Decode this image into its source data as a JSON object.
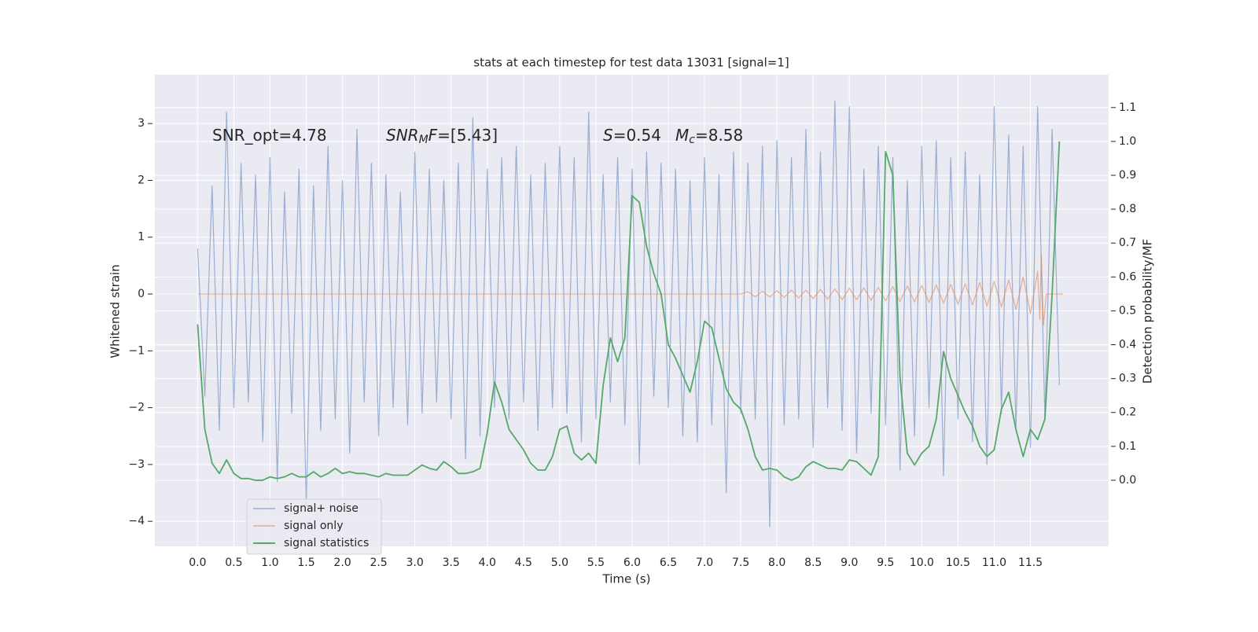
{
  "chart_data": {
    "type": "line",
    "title": "stats at each timestep for test data 13031 [signal=1]",
    "xlabel": "Time (s)",
    "ylabel": "Whitened strain",
    "y2label": "Detection probability/MF",
    "annotations": [
      [
        {
          "t": "SNR_opt=4.78"
        }
      ],
      [
        {
          "t": "SNR",
          "italic": true
        },
        {
          "t": "M",
          "italic": true,
          "sub": true
        },
        {
          "t": "F",
          "italic": true
        },
        {
          "t": "=[5.43]"
        }
      ],
      [
        {
          "t": "S",
          "italic": true
        },
        {
          "t": "=0.54"
        }
      ],
      [
        {
          "t": "M",
          "italic": true
        },
        {
          "t": "c",
          "italic": true,
          "sub": true
        },
        {
          "t": "=8.58"
        }
      ]
    ],
    "x": [
      0,
      0.1,
      0.2,
      0.3,
      0.4,
      0.5,
      0.6,
      0.7,
      0.8,
      0.9,
      1,
      1.1,
      1.2,
      1.3,
      1.4,
      1.5,
      1.6,
      1.7,
      1.8,
      1.9,
      2,
      2.1,
      2.2,
      2.3,
      2.4,
      2.5,
      2.6,
      2.7,
      2.8,
      2.9,
      3,
      3.1,
      3.2,
      3.3,
      3.4,
      3.5,
      3.6,
      3.7,
      3.8,
      3.9,
      4,
      4.1,
      4.2,
      4.3,
      4.4,
      4.5,
      4.6,
      4.7,
      4.8,
      4.9,
      5,
      5.1,
      5.2,
      5.3,
      5.4,
      5.5,
      5.6,
      5.7,
      5.8,
      5.9,
      6,
      6.1,
      6.2,
      6.3,
      6.4,
      6.5,
      6.6,
      6.7,
      6.8,
      6.9,
      7,
      7.1,
      7.2,
      7.3,
      7.4,
      7.5,
      7.6,
      7.7,
      7.8,
      7.9,
      8,
      8.1,
      8.2,
      8.3,
      8.4,
      8.5,
      8.6,
      8.7,
      8.8,
      8.9,
      9,
      9.1,
      9.2,
      9.3,
      9.4,
      9.5,
      9.6,
      9.7,
      9.8,
      9.9,
      10,
      10.1,
      10.2,
      10.3,
      10.4,
      10.5,
      10.6,
      10.7,
      10.8,
      10.9,
      11,
      11.1,
      11.2,
      11.3,
      11.4,
      11.5,
      11.6,
      11.7,
      11.8,
      11.9
    ],
    "series": [
      {
        "name": "signal+ noise",
        "color": "#4c72b0",
        "values": [
          0.8,
          -1.8,
          1.9,
          -2.4,
          3.2,
          -2.0,
          2.3,
          -1.9,
          2.1,
          -2.6,
          2.4,
          -3.3,
          1.8,
          -2.1,
          2.2,
          -3.7,
          1.9,
          -2.4,
          2.6,
          -2.2,
          2.0,
          -2.8,
          2.9,
          -1.9,
          2.3,
          -2.5,
          2.1,
          -2.0,
          1.8,
          -2.3,
          2.5,
          -2.1,
          2.2,
          -1.9,
          2.0,
          -2.2,
          2.3,
          -2.9,
          3.1,
          -2.5,
          2.2,
          -2.0,
          2.4,
          -2.2,
          2.6,
          -1.9,
          2.1,
          -2.4,
          2.3,
          -2.0,
          2.6,
          -2.1,
          2.4,
          -2.6,
          3.2,
          -2.2,
          2.1,
          -1.9,
          2.4,
          -2.3,
          2.2,
          -3.0,
          2.5,
          -1.8,
          2.3,
          -2.0,
          2.2,
          -2.5,
          2.0,
          -2.6,
          2.4,
          -2.3,
          2.1,
          -3.5,
          2.5,
          -2.1,
          2.3,
          -2.2,
          2.6,
          -4.1,
          2.7,
          -2.3,
          2.4,
          -2.2,
          2.9,
          -2.7,
          2.5,
          -2.0,
          3.4,
          -2.4,
          3.3,
          -2.8,
          2.2,
          -2.1,
          2.6,
          -2.3,
          2.4,
          -3.1,
          2.0,
          -2.5,
          2.6,
          -2.0,
          2.7,
          -3.2,
          2.4,
          -2.2,
          2.5,
          -2.6,
          2.1,
          -3.0,
          3.3,
          -2.1,
          2.8,
          -2.4,
          2.6,
          -2.7,
          3.3,
          -2.2,
          2.9,
          -1.6
        ]
      },
      {
        "name": "signal only",
        "color": "#dd8452",
        "x": [
          0,
          7.5,
          7.6,
          7.7,
          7.8,
          7.9,
          8,
          8.1,
          8.2,
          8.3,
          8.4,
          8.5,
          8.6,
          8.7,
          8.8,
          8.9,
          9,
          9.1,
          9.2,
          9.3,
          9.4,
          9.5,
          9.6,
          9.7,
          9.8,
          9.9,
          10,
          10.1,
          10.2,
          10.3,
          10.4,
          10.5,
          10.6,
          10.7,
          10.8,
          10.9,
          11,
          11.1,
          11.2,
          11.3,
          11.4,
          11.5,
          11.6,
          11.63,
          11.65,
          11.68,
          11.72,
          11.95
        ],
        "values": [
          0,
          0,
          0.04,
          -0.05,
          0.05,
          -0.05,
          0.06,
          -0.06,
          0.07,
          -0.07,
          0.07,
          -0.08,
          0.08,
          -0.09,
          0.09,
          -0.1,
          0.1,
          -0.1,
          0.11,
          -0.11,
          0.12,
          -0.12,
          0.13,
          -0.13,
          0.14,
          -0.14,
          0.15,
          -0.15,
          0.16,
          -0.16,
          0.17,
          -0.18,
          0.18,
          -0.19,
          0.2,
          -0.21,
          0.22,
          -0.23,
          0.25,
          -0.27,
          0.3,
          -0.34,
          0.4,
          -0.45,
          0.7,
          -0.55,
          0,
          0
        ]
      },
      {
        "name": "signal statistics",
        "color": "#55a868",
        "axis": "y2",
        "values": [
          0.46,
          0.15,
          0.05,
          0.02,
          0.06,
          0.02,
          0.005,
          0.005,
          0,
          0,
          0.01,
          0.005,
          0.01,
          0.02,
          0.01,
          0.01,
          0.025,
          0.01,
          0.02,
          0.035,
          0.02,
          0.025,
          0.02,
          0.02,
          0.015,
          0.01,
          0.02,
          0.015,
          0.015,
          0.015,
          0.03,
          0.045,
          0.035,
          0.03,
          0.055,
          0.04,
          0.02,
          0.02,
          0.025,
          0.035,
          0.14,
          0.29,
          0.23,
          0.15,
          0.12,
          0.09,
          0.05,
          0.03,
          0.03,
          0.07,
          0.15,
          0.16,
          0.08,
          0.06,
          0.08,
          0.05,
          0.28,
          0.42,
          0.35,
          0.42,
          0.84,
          0.82,
          0.69,
          0.61,
          0.55,
          0.4,
          0.36,
          0.31,
          0.26,
          0.35,
          0.47,
          0.45,
          0.36,
          0.27,
          0.23,
          0.21,
          0.15,
          0.07,
          0.03,
          0.035,
          0.03,
          0.01,
          0,
          0.01,
          0.04,
          0.055,
          0.045,
          0.035,
          0.035,
          0.03,
          0.06,
          0.055,
          0.035,
          0.015,
          0.07,
          0.97,
          0.9,
          0.3,
          0.08,
          0.045,
          0.08,
          0.1,
          0.18,
          0.38,
          0.3,
          0.25,
          0.2,
          0.16,
          0.1,
          0.07,
          0.09,
          0.21,
          0.26,
          0.15,
          0.07,
          0.15,
          0.12,
          0.18,
          0.55,
          1.0
        ]
      }
    ],
    "xlim": [
      -0.59,
      12.58
    ],
    "ylim": [
      -4.44,
      3.86
    ],
    "y2lim": [
      -0.195,
      1.197
    ],
    "xticks": [
      {
        "value": 0,
        "label": "0.0"
      },
      0.5,
      {
        "value": 1,
        "label": "1.0"
      },
      1.5,
      {
        "value": 2,
        "label": "2.0"
      },
      2.5,
      {
        "value": 3,
        "label": "3.0"
      },
      3.5,
      {
        "value": 4,
        "label": "4.0"
      },
      4.5,
      {
        "value": 5,
        "label": "5.0"
      },
      5.5,
      {
        "value": 6,
        "label": "6.0"
      },
      6.5,
      {
        "value": 7,
        "label": "7.0"
      },
      7.5,
      {
        "value": 8,
        "label": "8.0"
      },
      8.5,
      {
        "value": 9,
        "label": "9.0"
      },
      9.5,
      {
        "value": 10,
        "label": "10.0"
      },
      10.5,
      {
        "value": 11,
        "label": "11.0"
      },
      11.5
    ],
    "yticks": [
      {
        "value": -4,
        "label": "−4"
      },
      {
        "value": -3,
        "label": "−3"
      },
      {
        "value": -2,
        "label": "−2"
      },
      {
        "value": -1,
        "label": "−1"
      },
      0,
      1,
      2,
      3
    ],
    "y2ticks": [
      {
        "value": 0,
        "label": "0.0"
      },
      0.1,
      0.2,
      0.3,
      0.4,
      0.5,
      0.6,
      0.7,
      0.8,
      0.9,
      {
        "value": 1,
        "label": "1.0"
      },
      1.1
    ],
    "grid": true,
    "legend": "lower left"
  }
}
